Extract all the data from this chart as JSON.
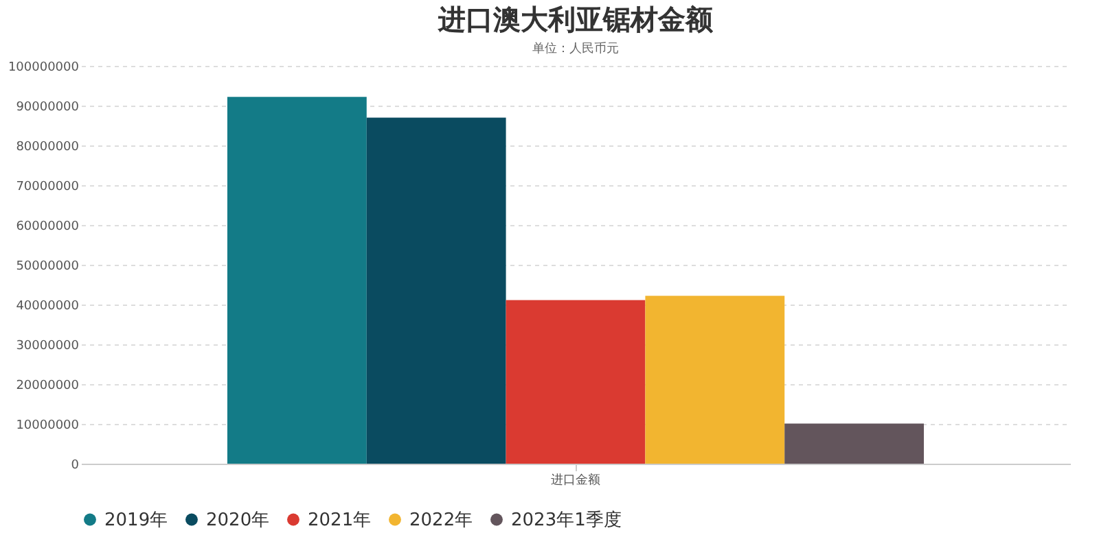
{
  "chart_data": {
    "type": "bar",
    "title": "进口澳大利亚锯材金额",
    "subtitle": "单位：人民币元",
    "categories": [
      "进口金额"
    ],
    "series": [
      {
        "name": "2019年",
        "color": "#137b87",
        "values": [
          92200000
        ]
      },
      {
        "name": "2020年",
        "color": "#0a4b60",
        "values": [
          87000000
        ]
      },
      {
        "name": "2021年",
        "color": "#da3a31",
        "values": [
          41100000
        ]
      },
      {
        "name": "2022年",
        "color": "#f2b530",
        "values": [
          42200000
        ]
      },
      {
        "name": "2023年1季度",
        "color": "#63555c",
        "values": [
          10100000
        ]
      }
    ],
    "ylim": [
      0,
      100000000
    ],
    "yticks": [
      0,
      10000000,
      20000000,
      30000000,
      40000000,
      50000000,
      60000000,
      70000000,
      80000000,
      90000000,
      100000000
    ],
    "grid": "y",
    "legend": "bottom"
  }
}
